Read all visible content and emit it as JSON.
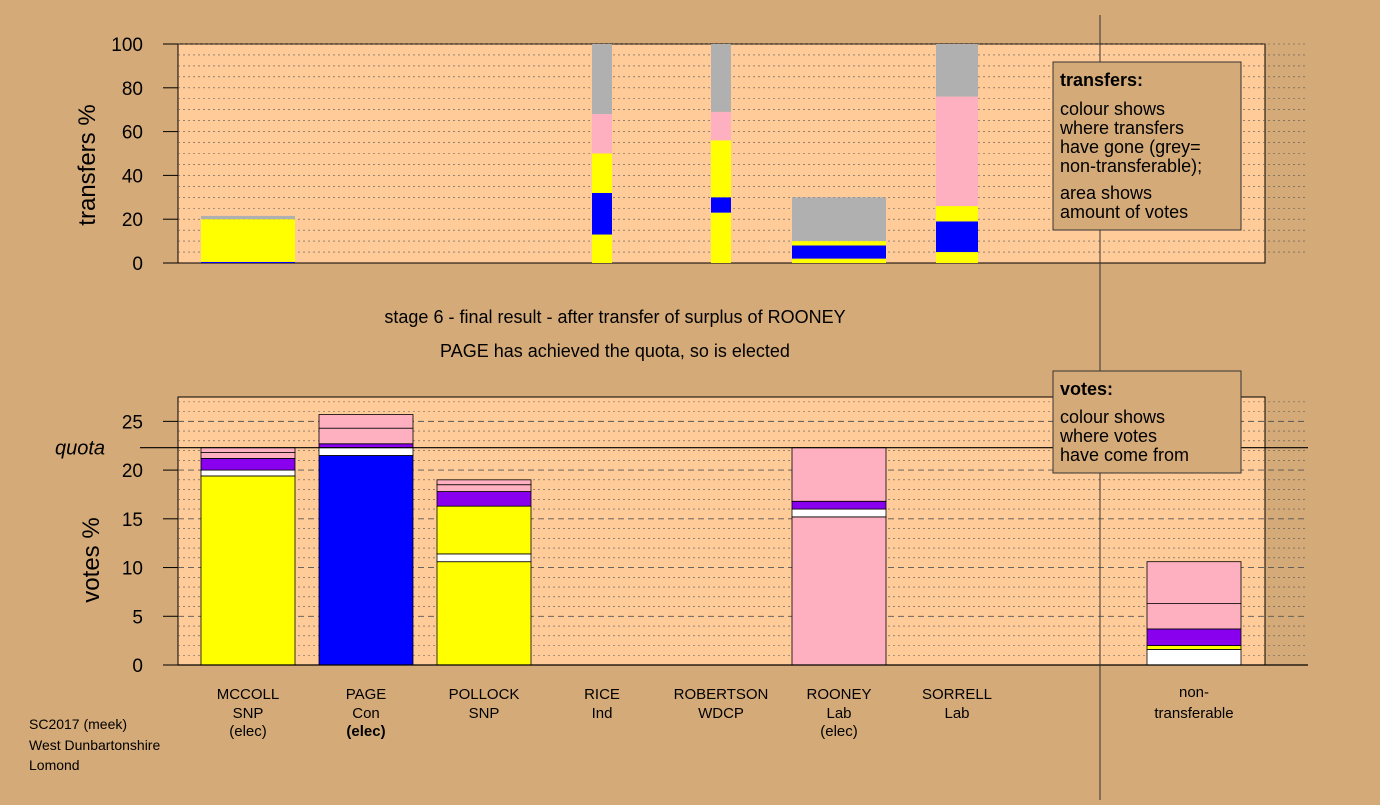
{
  "colors": {
    "background": "#d4aa78",
    "plot_area": "#ffcc99",
    "yellow": "#ffff00",
    "blue": "#0000ff",
    "pink": "#ffb0c0",
    "purple": "#8800ee",
    "white": "#ffffff",
    "grey": "#b0b0b0"
  },
  "heading": {
    "line1": "stage 6 - final result - after transfer of surplus of ROONEY",
    "line2": "PAGE has achieved the quota, so is elected"
  },
  "footer": {
    "line1": "SC2017 (meek)",
    "line2": "West Dunbartonshire",
    "line3": "Lomond"
  },
  "quota_label": "quota",
  "transfers_box": {
    "title": "transfers:",
    "lines": [
      "colour shows",
      "where transfers",
      "have gone (grey=",
      "non-transferable);"
    ],
    "lines2": [
      "area shows",
      "amount of votes"
    ]
  },
  "votes_box": {
    "title": "votes:",
    "lines": [
      "colour shows",
      "where votes",
      "have come from"
    ]
  },
  "candidates": [
    {
      "name": "MCCOLL",
      "party": "SNP",
      "status": "(elec)",
      "status_bold": false
    },
    {
      "name": "PAGE",
      "party": "Con",
      "status": "(elec)",
      "status_bold": true
    },
    {
      "name": "POLLOCK",
      "party": "SNP",
      "status": "",
      "status_bold": false
    },
    {
      "name": "RICE",
      "party": "Ind",
      "status": "",
      "status_bold": false
    },
    {
      "name": "ROBERTSON",
      "party": "WDCP",
      "status": "",
      "status_bold": false
    },
    {
      "name": "ROONEY",
      "party": "Lab",
      "status": "(elec)",
      "status_bold": false
    },
    {
      "name": "SORRELL",
      "party": "Lab",
      "status": "",
      "status_bold": false
    },
    {
      "name": "non-",
      "party": "transferable",
      "status": "",
      "status_bold": false
    }
  ],
  "chart_data": [
    {
      "type": "bar",
      "stacked": true,
      "ylabel": "transfers %",
      "ylim": [
        0,
        100
      ],
      "yticks": [
        0,
        20,
        40,
        60,
        80,
        100
      ],
      "categories": [
        "MCCOLL",
        "RICE",
        "ROBERTSON",
        "ROONEY",
        "SORRELL"
      ],
      "bars": [
        {
          "category": "MCCOLL",
          "segments": [
            {
              "color": "blue",
              "value": 0.5
            },
            {
              "color": "yellow",
              "value": 19.5
            },
            {
              "color": "grey",
              "value": 1.5
            }
          ]
        },
        {
          "category": "RICE",
          "segments": [
            {
              "color": "yellow",
              "value": 13
            },
            {
              "color": "blue",
              "value": 19
            },
            {
              "color": "yellow",
              "value": 18
            },
            {
              "color": "pink",
              "value": 18
            },
            {
              "color": "grey",
              "value": 32
            }
          ]
        },
        {
          "category": "ROBERTSON",
          "segments": [
            {
              "color": "yellow",
              "value": 23
            },
            {
              "color": "blue",
              "value": 7
            },
            {
              "color": "yellow",
              "value": 26
            },
            {
              "color": "pink",
              "value": 13
            },
            {
              "color": "grey",
              "value": 31
            }
          ]
        },
        {
          "category": "ROONEY",
          "segments": [
            {
              "color": "yellow",
              "value": 2
            },
            {
              "color": "blue",
              "value": 6
            },
            {
              "color": "yellow",
              "value": 2
            },
            {
              "color": "grey",
              "value": 20
            }
          ]
        },
        {
          "category": "SORRELL",
          "segments": [
            {
              "color": "yellow",
              "value": 5
            },
            {
              "color": "blue",
              "value": 14
            },
            {
              "color": "yellow",
              "value": 7
            },
            {
              "color": "pink",
              "value": 50
            },
            {
              "color": "grey",
              "value": 24
            }
          ]
        }
      ]
    },
    {
      "type": "bar",
      "stacked": true,
      "ylabel": "votes %",
      "ylim": [
        0,
        27.5
      ],
      "yticks": [
        0,
        5,
        10,
        15,
        20,
        25
      ],
      "quota": 22.3,
      "categories": [
        "MCCOLL",
        "PAGE",
        "POLLOCK",
        "RICE",
        "ROBERTSON",
        "ROONEY",
        "SORRELL",
        "non-transferable"
      ],
      "bars": [
        {
          "category": "MCCOLL",
          "segments": [
            {
              "color": "yellow",
              "value": 19.4
            },
            {
              "color": "white",
              "value": 0.6
            },
            {
              "color": "purple",
              "value": 1.2
            },
            {
              "color": "pink",
              "value": 0.6
            },
            {
              "color": "pink",
              "value": 0.5
            }
          ]
        },
        {
          "category": "PAGE",
          "segments": [
            {
              "color": "blue",
              "value": 21.5
            },
            {
              "color": "white",
              "value": 0.8
            },
            {
              "color": "purple",
              "value": 0.4
            },
            {
              "color": "pink",
              "value": 1.6
            },
            {
              "color": "pink",
              "value": 1.4
            }
          ]
        },
        {
          "category": "POLLOCK",
          "segments": [
            {
              "color": "yellow",
              "value": 10.6
            },
            {
              "color": "white",
              "value": 0.8
            },
            {
              "color": "yellow",
              "value": 4.9
            },
            {
              "color": "purple",
              "value": 1.5
            },
            {
              "color": "pink",
              "value": 0.7
            },
            {
              "color": "pink",
              "value": 0.5
            }
          ]
        },
        {
          "category": "RICE",
          "segments": []
        },
        {
          "category": "ROBERTSON",
          "segments": []
        },
        {
          "category": "ROONEY",
          "segments": [
            {
              "color": "pink",
              "value": 15.2
            },
            {
              "color": "white",
              "value": 0.8
            },
            {
              "color": "purple",
              "value": 0.8
            },
            {
              "color": "pink",
              "value": 5.5
            }
          ]
        },
        {
          "category": "SORRELL",
          "segments": []
        },
        {
          "category": "non-transferable",
          "segments": [
            {
              "color": "white",
              "value": 1.6
            },
            {
              "color": "yellow",
              "value": 0.4
            },
            {
              "color": "purple",
              "value": 1.7
            },
            {
              "color": "pink",
              "value": 2.6
            },
            {
              "color": "pink",
              "value": 4.3
            }
          ]
        }
      ]
    }
  ]
}
